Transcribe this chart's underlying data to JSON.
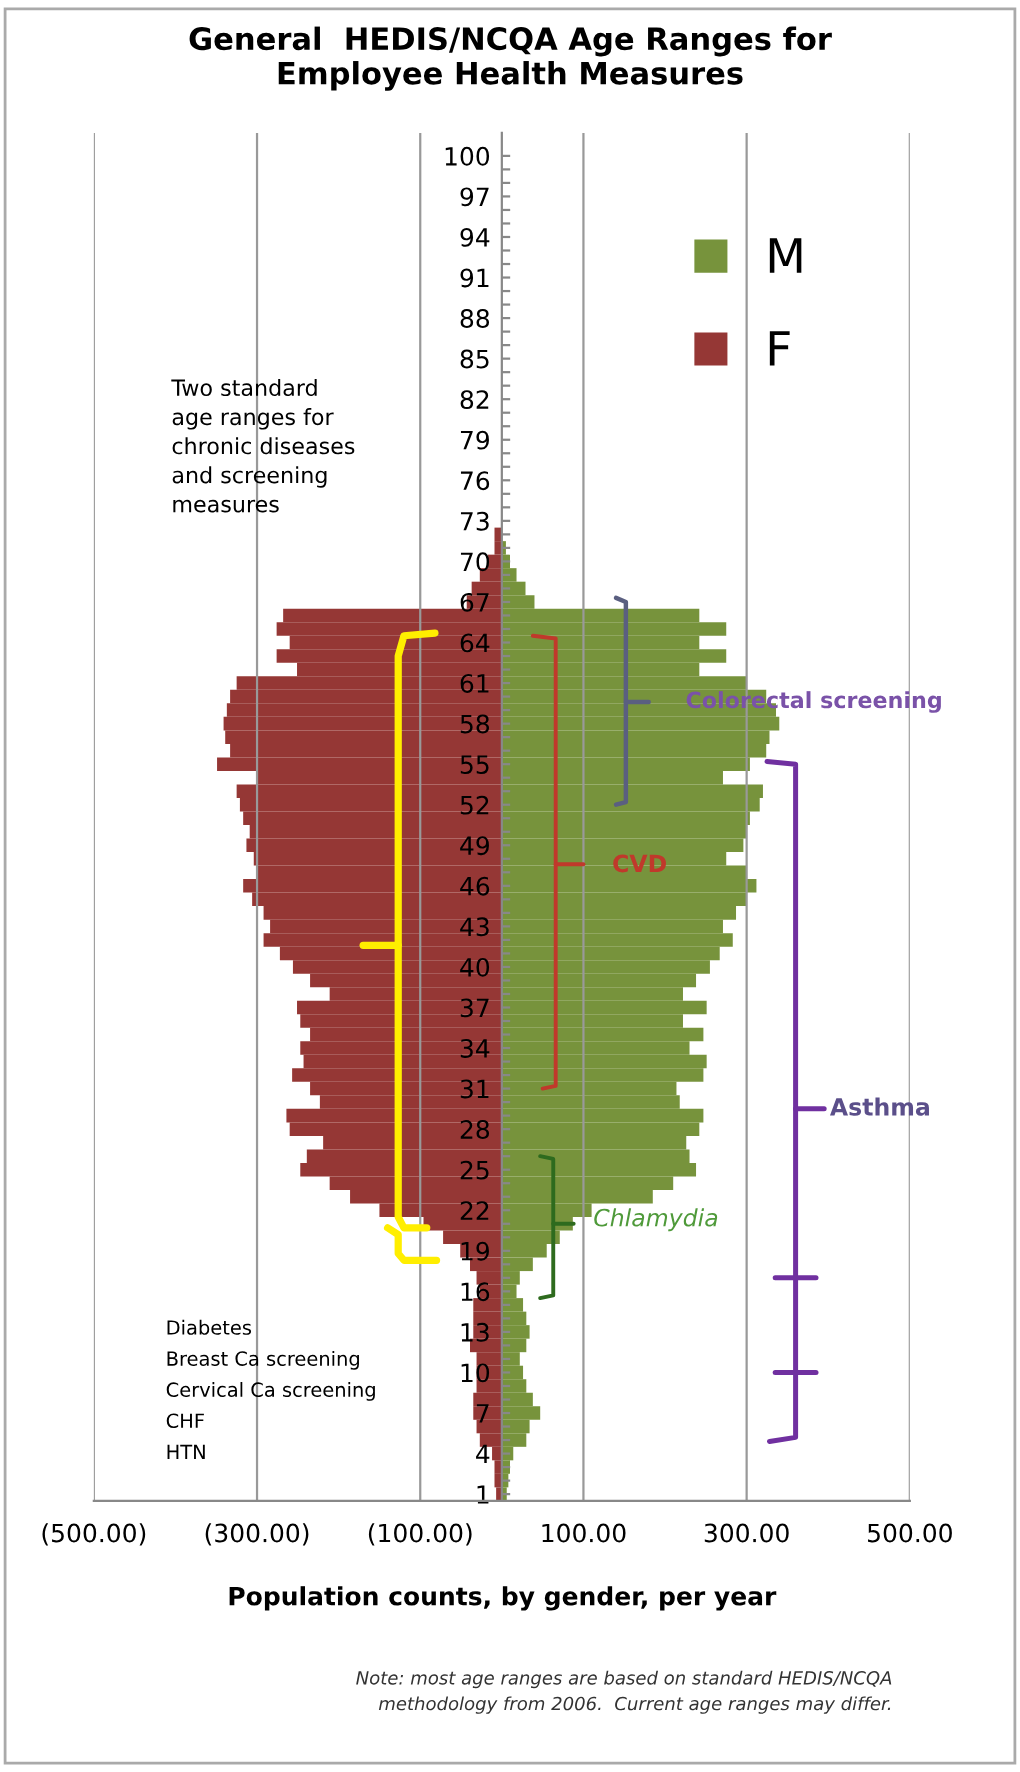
{
  "chart_data": {
    "type": "bar",
    "orientation": "horizontal",
    "stacked": true,
    "title": "General  HEDIS/NCQA Age Ranges for\nEmployee Health Measures",
    "xlabel": "Population counts, by gender, per year",
    "categories": [
      "100",
      null,
      null,
      "97",
      null,
      null,
      "94",
      null,
      null,
      "91",
      null,
      null,
      "88",
      null,
      null,
      "85",
      null,
      null,
      "82",
      null,
      null,
      "79",
      null,
      null,
      "76",
      null,
      null,
      "73",
      null,
      null,
      "70",
      null,
      null,
      "67",
      null,
      null,
      "64",
      null,
      null,
      "61",
      null,
      null,
      "58",
      null,
      null,
      "55",
      null,
      null,
      "52",
      null,
      null,
      "49",
      null,
      null,
      "46",
      null,
      null,
      "43",
      null,
      null,
      "40",
      null,
      null,
      "37",
      null,
      null,
      "34",
      null,
      null,
      "31",
      null,
      null,
      "28",
      null,
      null,
      "25",
      null,
      null,
      "22",
      null,
      null,
      "19",
      null,
      null,
      "16",
      null,
      null,
      "13",
      null,
      null,
      "10",
      null,
      null,
      "7",
      null,
      null,
      "4",
      null,
      null,
      "1"
    ],
    "series": [
      {
        "name": "M",
        "color": "#77933c",
        "values": [
          null,
          null,
          null,
          null,
          null,
          null,
          null,
          null,
          null,
          null,
          null,
          null,
          null,
          null,
          null,
          null,
          null,
          null,
          null,
          null,
          null,
          null,
          null,
          null,
          null,
          null,
          null,
          null,
          null,
          5,
          10,
          18,
          29,
          40,
          242,
          275,
          242,
          275,
          242,
          300,
          324,
          336,
          340,
          328,
          324,
          304,
          271,
          320,
          316,
          304,
          300,
          296,
          275,
          300,
          312,
          300,
          287,
          271,
          283,
          267,
          255,
          238,
          222,
          251,
          222,
          247,
          230,
          251,
          247,
          214,
          218,
          247,
          242,
          226,
          230,
          238,
          210,
          185,
          110,
          87,
          71,
          55,
          38,
          22,
          18,
          26,
          30,
          34,
          30,
          22,
          26,
          30,
          38,
          47,
          34,
          30,
          14,
          10,
          8,
          6
        ]
      },
      {
        "name": "F",
        "color": "#953735",
        "values": [
          null,
          null,
          null,
          null,
          null,
          null,
          null,
          null,
          null,
          null,
          null,
          null,
          null,
          null,
          null,
          null,
          null,
          null,
          null,
          null,
          null,
          null,
          null,
          null,
          null,
          null,
          null,
          null,
          -9,
          -9,
          -17,
          -27,
          -37,
          -43,
          -268,
          -276,
          -260,
          -276,
          -251,
          -325,
          -333,
          -337,
          -341,
          -339,
          -333,
          -349,
          -300,
          -325,
          -321,
          -317,
          -309,
          -313,
          -304,
          -300,
          -317,
          -306,
          -292,
          -284,
          -292,
          -272,
          -256,
          -235,
          -211,
          -251,
          -247,
          -235,
          -247,
          -243,
          -257,
          -235,
          -223,
          -264,
          -260,
          -219,
          -239,
          -247,
          -211,
          -186,
          -150,
          -96,
          -72,
          -51,
          -39,
          -31,
          -27,
          -35,
          -35,
          -35,
          -39,
          -31,
          -31,
          -31,
          -35,
          -35,
          -31,
          -27,
          -12,
          -9,
          -9,
          -7
        ]
      }
    ],
    "xlim": [
      -500,
      500
    ],
    "xticks": [
      {
        "value": -500,
        "label": "(500.00)"
      },
      {
        "value": -300,
        "label": "(300.00)"
      },
      {
        "value": -100,
        "label": "(100.00)"
      },
      {
        "value": 100,
        "label": "100.00"
      },
      {
        "value": 300,
        "label": "300.00"
      },
      {
        "value": 500,
        "label": "500.00"
      }
    ],
    "grid": "x",
    "legend": "top right",
    "annotations": [
      "Two standard\nage ranges for\nchronic diseases\nand screening\nmeasures",
      "Colorectal screening",
      "CVD",
      "Chlamydia",
      "Asthma",
      "Diabetes",
      "Breast Ca screening",
      "Cervical Ca screening",
      "CHF",
      "HTN",
      "Note: most age ranges are based on standard HEDIS/NCQA\nmethodology from 2006.  Current age ranges may differ."
    ]
  }
}
